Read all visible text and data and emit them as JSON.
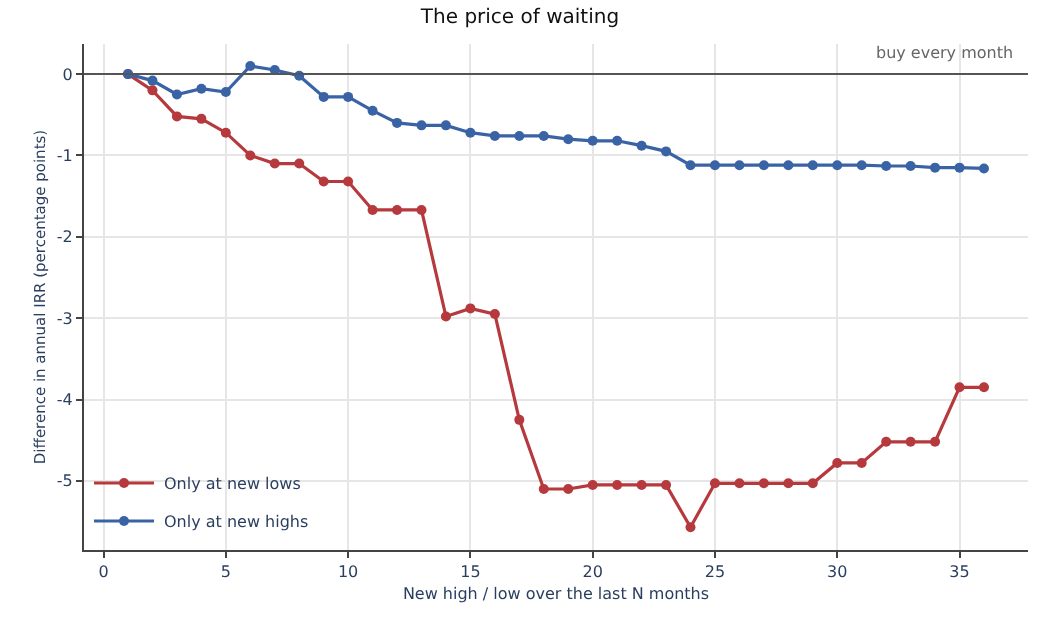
{
  "chart_data": {
    "type": "line",
    "title": "The price of waiting",
    "xlabel": "New high / low over the last N months",
    "ylabel": "Difference in annual IRR (percentage points)",
    "x": [
      1,
      2,
      3,
      4,
      5,
      6,
      7,
      8,
      9,
      10,
      11,
      12,
      13,
      14,
      15,
      16,
      17,
      18,
      19,
      20,
      21,
      22,
      23,
      24,
      25,
      26,
      27,
      28,
      29,
      30,
      31,
      32,
      33,
      34,
      35,
      36
    ],
    "series": [
      {
        "name": "Only at new lows",
        "color": "#b5393d",
        "values": [
          0,
          -0.2,
          -0.52,
          -0.55,
          -0.72,
          -1.0,
          -1.1,
          -1.1,
          -1.32,
          -1.32,
          -1.67,
          -1.67,
          -1.67,
          -2.98,
          -2.88,
          -2.95,
          -4.25,
          -5.1,
          -5.1,
          -5.05,
          -5.05,
          -5.05,
          -5.05,
          -5.57,
          -5.03,
          -5.03,
          -5.03,
          -5.03,
          -5.03,
          -4.78,
          -4.78,
          -4.52,
          -4.52,
          -4.52,
          -3.85,
          -3.85
        ]
      },
      {
        "name": "Only at new highs",
        "color": "#3a63a5",
        "values": [
          0,
          -0.08,
          -0.25,
          -0.18,
          -0.22,
          0.1,
          0.05,
          -0.02,
          -0.28,
          -0.28,
          -0.45,
          -0.6,
          -0.63,
          -0.63,
          -0.72,
          -0.76,
          -0.76,
          -0.76,
          -0.8,
          -0.82,
          -0.82,
          -0.88,
          -0.95,
          -1.12,
          -1.12,
          -1.12,
          -1.12,
          -1.12,
          -1.12,
          -1.12,
          -1.12,
          -1.13,
          -1.13,
          -1.15,
          -1.15,
          -1.16
        ]
      }
    ],
    "xlim": [
      -0.8,
      37.8
    ],
    "ylim": [
      -5.85,
      0.37
    ],
    "xticks": [
      0,
      5,
      10,
      15,
      20,
      25,
      30,
      35
    ],
    "yticks": [
      0,
      -1,
      -2,
      -3,
      -4,
      -5
    ],
    "ref_lines": [
      {
        "axis": "y",
        "value": 0,
        "label": "buy every month",
        "color": "#555555"
      }
    ],
    "grid": true,
    "legend": "bottom left",
    "marker": "circle",
    "line_style": "solid"
  }
}
